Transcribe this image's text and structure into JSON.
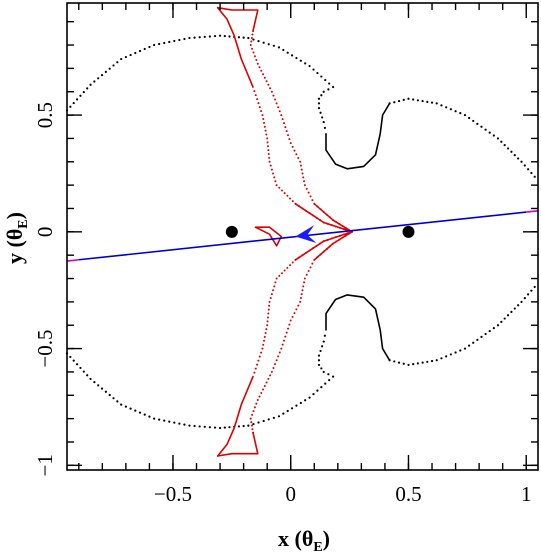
{
  "chart_data": {
    "type": "scatter",
    "title": "",
    "xlabel": {
      "main": "x (θ",
      "sub": "E",
      "close": ")"
    },
    "ylabel": {
      "main": "y (θ",
      "sub": "E",
      "close": ")"
    },
    "xlim": [
      -0.95,
      1.05
    ],
    "ylim": [
      -1.02,
      0.98
    ],
    "xticks": [
      {
        "value": -0.5,
        "label": "−0.5"
      },
      {
        "value": 0,
        "label": "0"
      },
      {
        "value": 0.5,
        "label": "0.5"
      },
      {
        "value": 1,
        "label": "1"
      }
    ],
    "yticks": [
      {
        "value": -1,
        "label": "−1"
      },
      {
        "value": -0.5,
        "label": "−0.5"
      },
      {
        "value": 0,
        "label": "0"
      },
      {
        "value": 0.5,
        "label": "0.5"
      }
    ],
    "xminor_step": 0.1,
    "yminor_step": 0.1,
    "grid": false,
    "lenses": [
      {
        "x": -0.25,
        "y": 0.0
      },
      {
        "x": 0.5,
        "y": 0.0
      }
    ],
    "critical_curve_outer": [
      [
        -0.95,
        0.52
      ],
      [
        -0.85,
        0.63
      ],
      [
        -0.72,
        0.74
      ],
      [
        -0.58,
        0.8
      ],
      [
        -0.43,
        0.83
      ],
      [
        -0.3,
        0.84
      ],
      [
        -0.18,
        0.83
      ],
      [
        -0.05,
        0.79
      ],
      [
        0.08,
        0.71
      ],
      [
        0.18,
        0.62
      ],
      [
        0.14,
        0.6
      ],
      [
        0.12,
        0.57
      ],
      [
        0.12,
        0.53
      ],
      [
        0.14,
        0.47
      ],
      [
        0.15,
        0.42
      ]
    ],
    "critical_curve_inner": [
      [
        0.15,
        0.42
      ],
      [
        0.15,
        0.35
      ],
      [
        0.19,
        0.29
      ],
      [
        0.24,
        0.27
      ],
      [
        0.31,
        0.28
      ],
      [
        0.36,
        0.33
      ],
      [
        0.38,
        0.42
      ],
      [
        0.39,
        0.5
      ],
      [
        0.42,
        0.55
      ],
      [
        0.5,
        0.57
      ],
      [
        0.62,
        0.55
      ],
      [
        0.74,
        0.5
      ],
      [
        0.88,
        0.4
      ],
      [
        0.98,
        0.3
      ],
      [
        1.05,
        0.22
      ]
    ],
    "caustic_upper": [
      [
        -0.31,
        0.96
      ],
      [
        -0.25,
        0.95
      ],
      [
        -0.14,
        0.95
      ],
      [
        -0.16,
        0.86
      ],
      [
        -0.17,
        0.8
      ],
      [
        -0.14,
        0.72
      ],
      [
        -0.08,
        0.6
      ],
      [
        -0.04,
        0.5
      ],
      [
        0.0,
        0.38
      ],
      [
        0.04,
        0.3
      ],
      [
        0.06,
        0.2
      ],
      [
        0.1,
        0.12
      ],
      [
        0.18,
        0.05
      ],
      [
        0.26,
        0.0
      ],
      [
        0.14,
        0.04
      ],
      [
        0.02,
        0.12
      ],
      [
        -0.06,
        0.2
      ],
      [
        -0.09,
        0.3
      ],
      [
        -0.1,
        0.4
      ],
      [
        -0.12,
        0.5
      ],
      [
        -0.16,
        0.62
      ],
      [
        -0.21,
        0.74
      ],
      [
        -0.24,
        0.84
      ],
      [
        -0.27,
        0.91
      ],
      [
        -0.31,
        0.96
      ]
    ],
    "caustic_left_tip": [
      [
        -0.09,
        0.02
      ],
      [
        -0.15,
        0.02
      ],
      [
        -0.09,
        -0.01
      ],
      [
        -0.06,
        -0.06
      ],
      [
        -0.04,
        -0.02
      ],
      [
        -0.09,
        0.02
      ]
    ],
    "caustic_lower": [
      [
        -0.31,
        -0.96
      ],
      [
        -0.25,
        -0.95
      ],
      [
        -0.14,
        -0.95
      ],
      [
        -0.16,
        -0.86
      ],
      [
        -0.17,
        -0.8
      ],
      [
        -0.14,
        -0.72
      ],
      [
        -0.08,
        -0.6
      ],
      [
        -0.04,
        -0.5
      ],
      [
        0.0,
        -0.38
      ],
      [
        0.04,
        -0.3
      ],
      [
        0.06,
        -0.2
      ],
      [
        0.1,
        -0.12
      ],
      [
        0.18,
        -0.05
      ],
      [
        0.26,
        0.0
      ],
      [
        0.14,
        -0.04
      ],
      [
        0.02,
        -0.12
      ],
      [
        -0.06,
        -0.2
      ],
      [
        -0.09,
        -0.3
      ],
      [
        -0.1,
        -0.4
      ],
      [
        -0.12,
        -0.5
      ],
      [
        -0.16,
        -0.62
      ],
      [
        -0.21,
        -0.74
      ],
      [
        -0.24,
        -0.84
      ],
      [
        -0.27,
        -0.91
      ],
      [
        -0.31,
        -0.96
      ]
    ],
    "source_trajectory": {
      "x0": -0.95,
      "y0": -0.125,
      "x1": 1.05,
      "y1": 0.09
    },
    "trajectory_inner_segment": [
      -0.9,
      1.0
    ],
    "direction_arrow": {
      "x": 0.02,
      "y": -0.02,
      "dx": -0.04,
      "dy": -0.005
    },
    "colors": {
      "critical_curve": "#000000",
      "caustic": "#dd0000",
      "trajectory_inner": "#0000cc",
      "trajectory_outer": "#cc00cc",
      "arrow": "#1a1aff",
      "lens": "#000000",
      "axes": "#000000"
    }
  }
}
